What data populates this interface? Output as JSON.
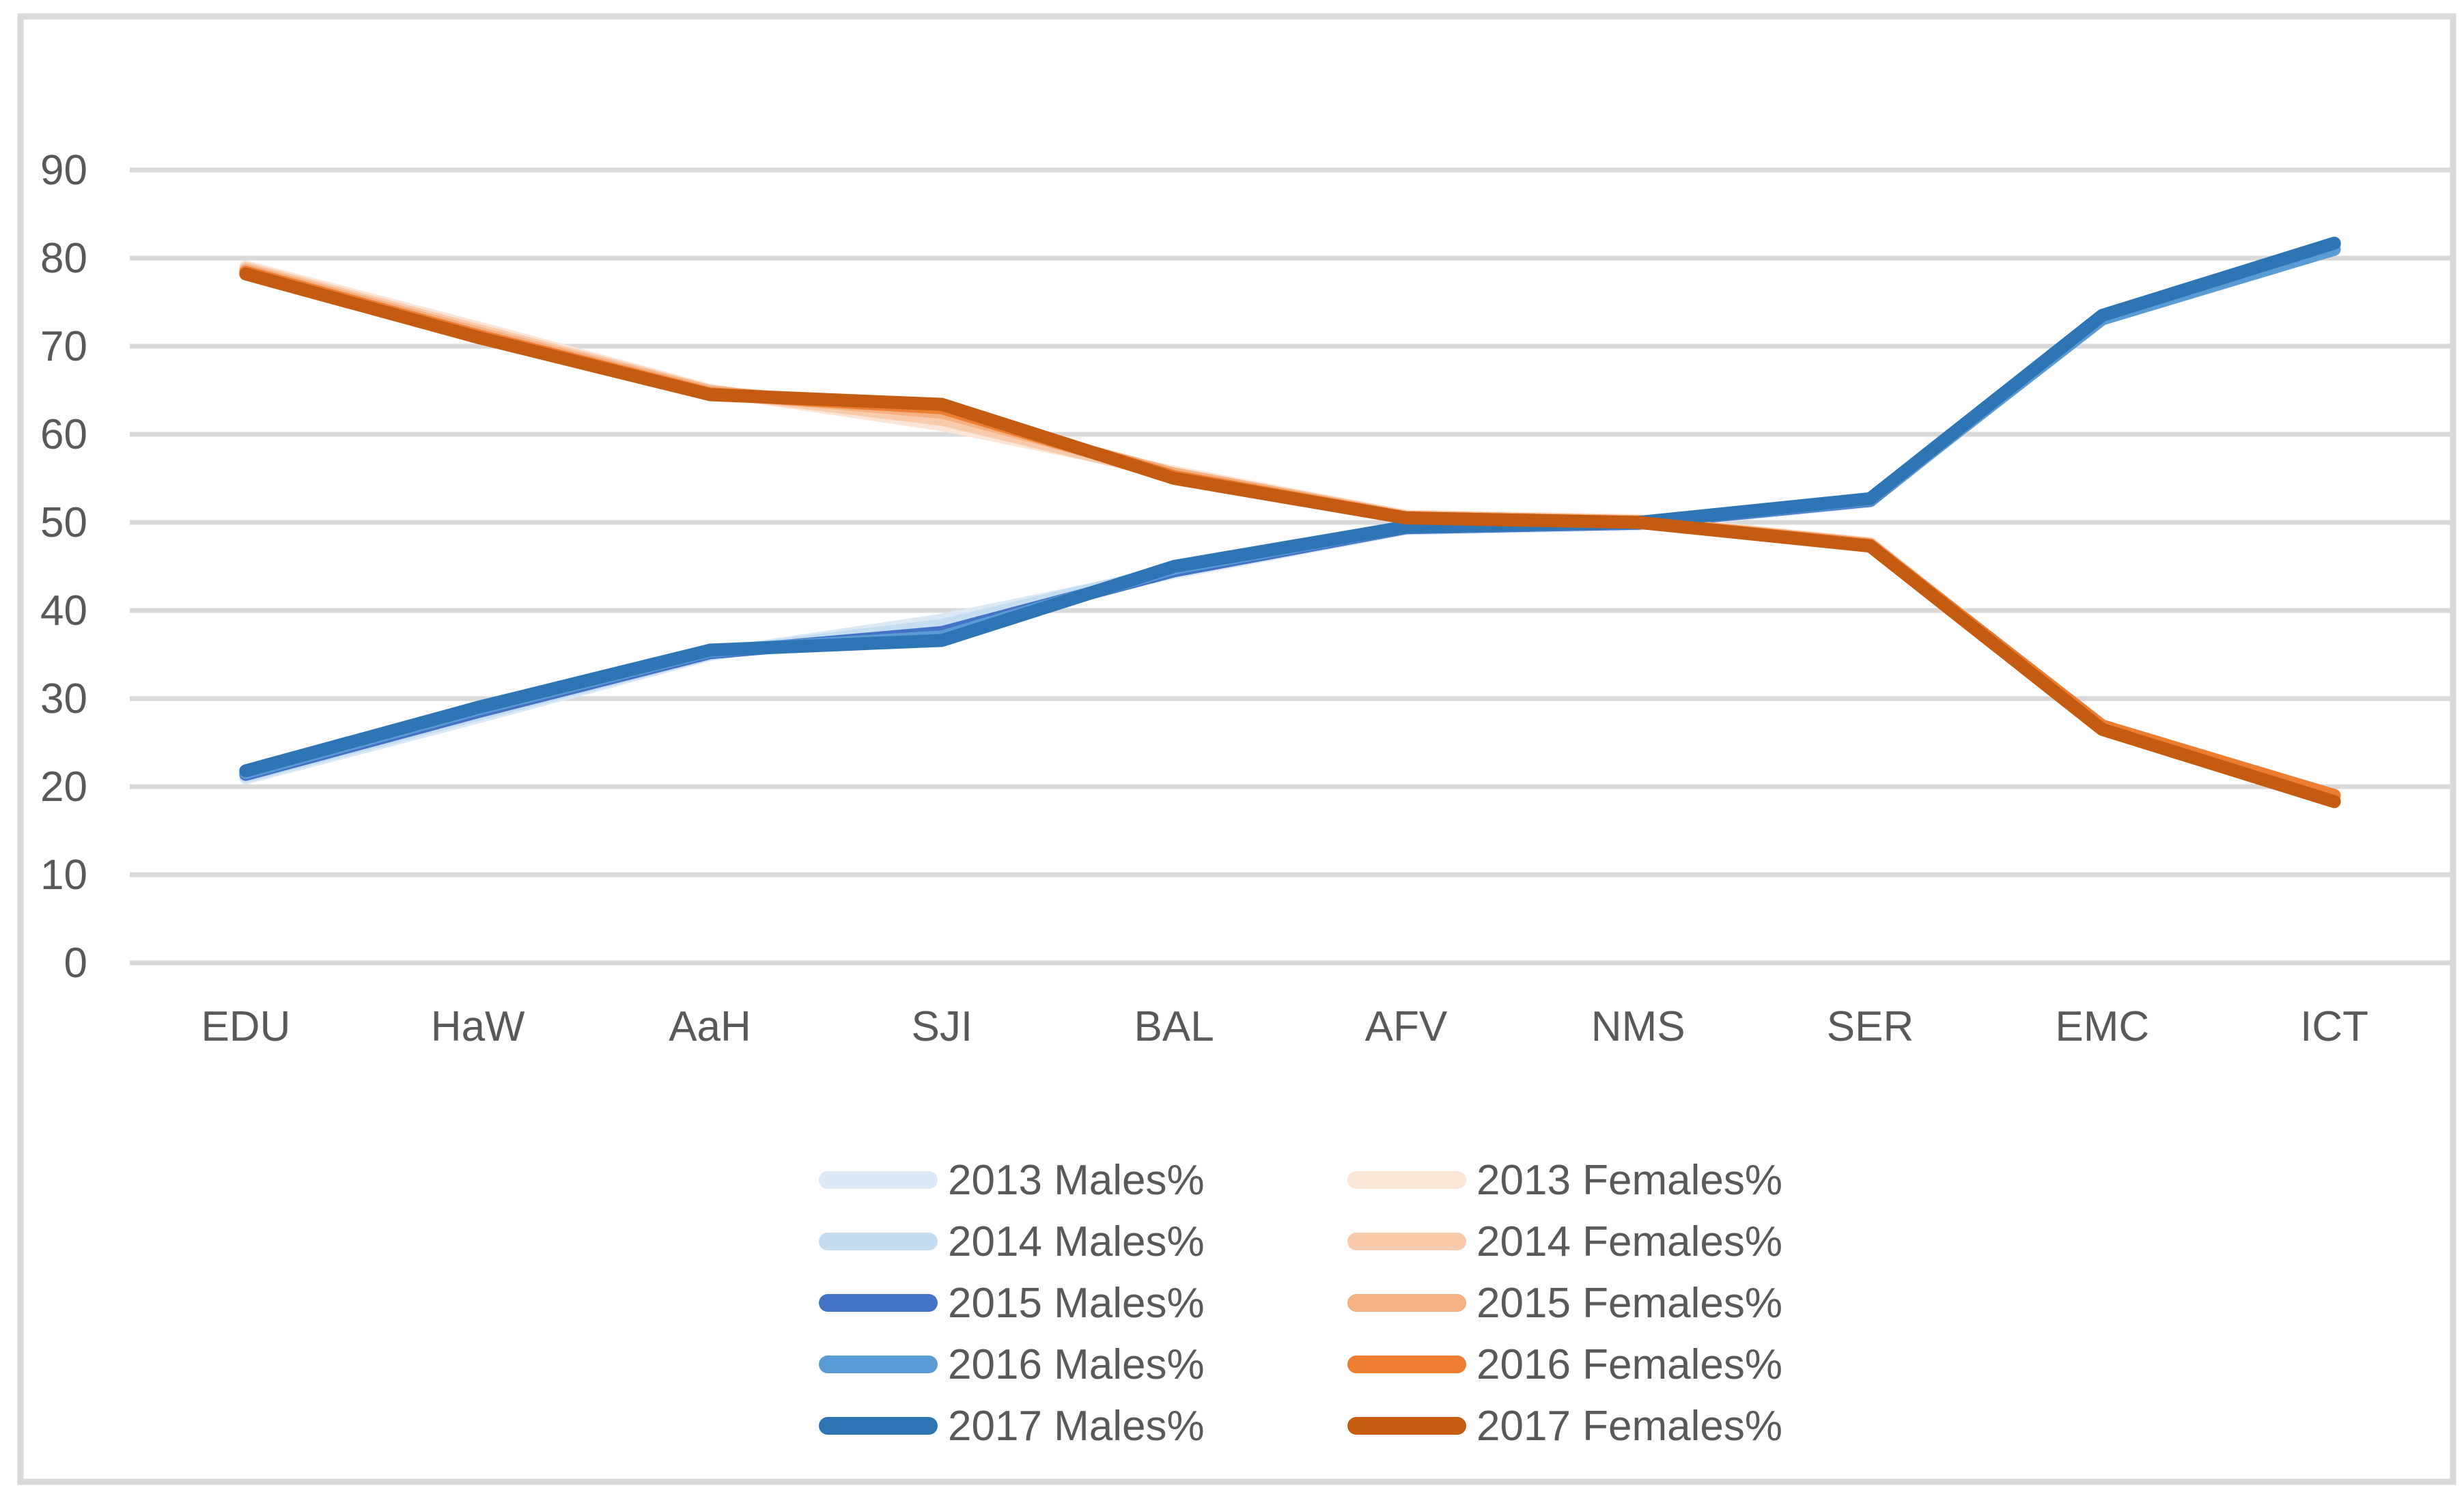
{
  "chart_data": {
    "type": "line",
    "title": "",
    "xlabel": "",
    "ylabel": "",
    "categories": [
      "EDU",
      "HaW",
      "AaH",
      "SJI",
      "BAL",
      "AFV",
      "NMS",
      "SER",
      "EMC",
      "ICT"
    ],
    "y_axis": {
      "min": 0,
      "max": 90,
      "tick_step": 10,
      "tick_labels": [
        "0",
        "10",
        "20",
        "30",
        "40",
        "50",
        "60",
        "70",
        "80",
        "90"
      ]
    },
    "grid": true,
    "legend": {
      "position": "bottom",
      "columns": 2
    },
    "series": [
      {
        "name": "2013 Males%",
        "color": "#dbe9f7",
        "values": [
          21.0,
          27.9,
          35.0,
          38.9,
          44.3,
          49.3,
          49.8,
          52.4,
          73.3,
          81.5
        ]
      },
      {
        "name": "2013 Females%",
        "color": "#fbe5d6",
        "values": [
          79.0,
          72.1,
          65.0,
          61.1,
          55.7,
          50.7,
          50.2,
          47.6,
          26.7,
          18.5
        ]
      },
      {
        "name": "2014 Males%",
        "color": "#c5ddf0",
        "values": [
          21.2,
          28.2,
          35.1,
          38.3,
          44.6,
          49.4,
          49.9,
          52.5,
          73.4,
          81.6
        ]
      },
      {
        "name": "2014 Females%",
        "color": "#f8cbad",
        "values": [
          78.8,
          71.8,
          64.9,
          61.7,
          55.4,
          50.6,
          50.1,
          47.5,
          26.6,
          18.4
        ]
      },
      {
        "name": "2015 Males%",
        "color": "#4472c4",
        "values": [
          21.4,
          28.5,
          35.2,
          37.5,
          44.5,
          49.4,
          49.9,
          52.5,
          73.4,
          81.6
        ]
      },
      {
        "name": "2015 Females%",
        "color": "#f4b183",
        "values": [
          78.6,
          71.5,
          64.8,
          62.5,
          55.5,
          50.6,
          50.1,
          47.5,
          26.6,
          18.4
        ]
      },
      {
        "name": "2016 Males%",
        "color": "#5b9bd5",
        "values": [
          21.6,
          28.8,
          35.4,
          37.0,
          44.8,
          49.5,
          50.0,
          52.6,
          73.1,
          81.0
        ]
      },
      {
        "name": "2016 Females%",
        "color": "#ed7d31",
        "values": [
          78.4,
          71.2,
          64.6,
          63.0,
          55.2,
          50.5,
          50.0,
          47.4,
          26.9,
          19.0
        ]
      },
      {
        "name": "2017 Males%",
        "color": "#2e75b6",
        "values": [
          21.8,
          29.0,
          35.5,
          36.6,
          45.0,
          49.5,
          50.0,
          52.7,
          73.5,
          81.7
        ]
      },
      {
        "name": "2017 Females%",
        "color": "#c55a11",
        "values": [
          78.2,
          71.0,
          64.5,
          63.4,
          55.0,
          50.5,
          50.0,
          47.3,
          26.5,
          18.3
        ]
      }
    ],
    "styles": {
      "background": "#ffffff",
      "border_color": "#d9d9d9",
      "grid_color": "#d9d9d9",
      "text_color": "#595959"
    }
  }
}
